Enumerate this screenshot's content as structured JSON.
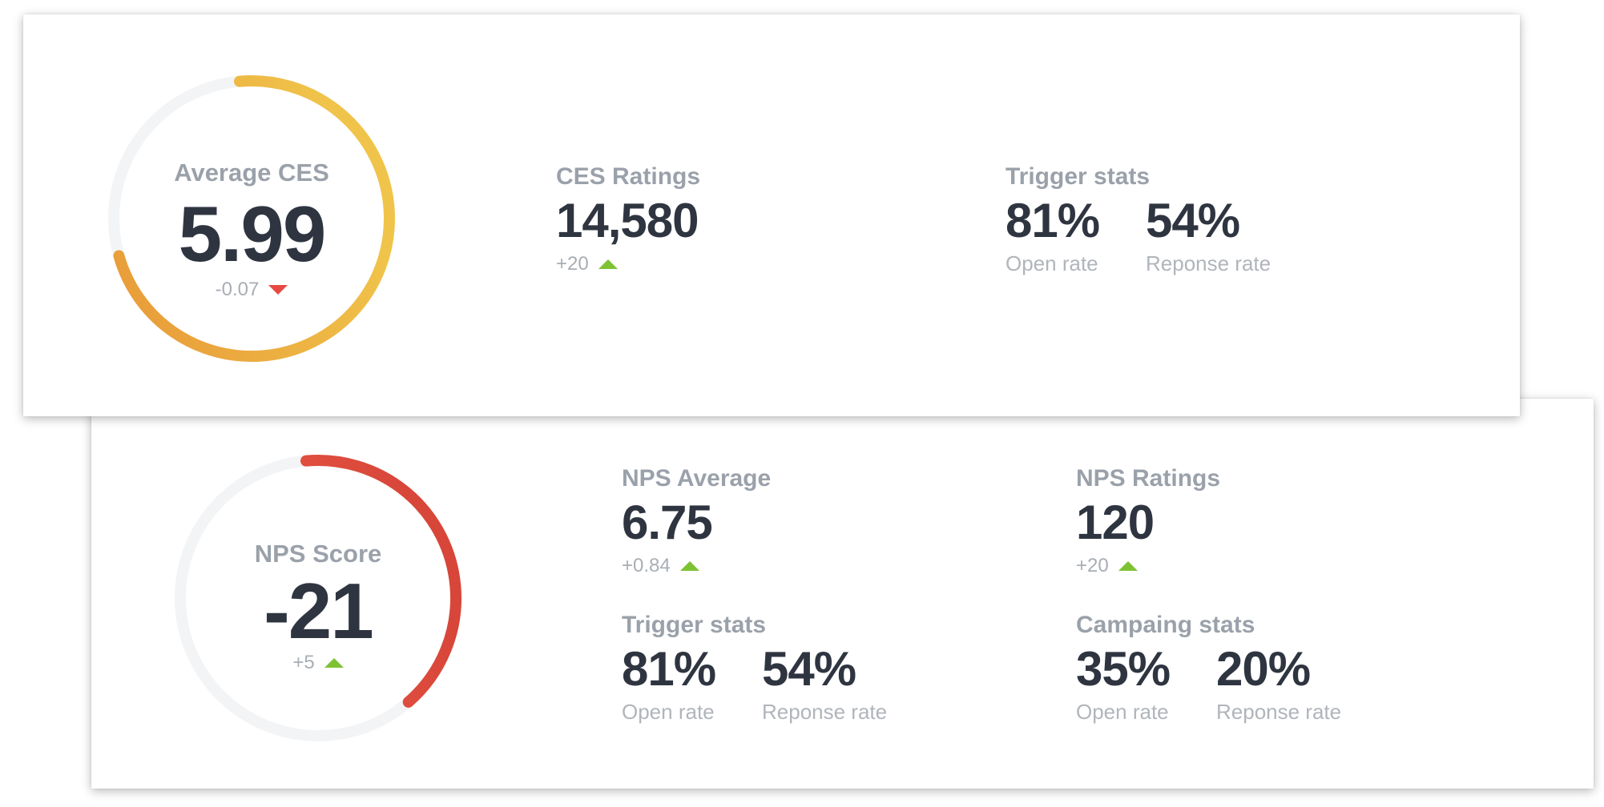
{
  "ces_card": {
    "gauge": {
      "label": "Average CES",
      "value": "5.99",
      "delta": "-0.07",
      "trend": "down",
      "fill_fraction": 0.72,
      "color_start": "#e89a38",
      "color_end": "#f0c44a"
    },
    "ratings": {
      "title": "CES Ratings",
      "value": "14,580",
      "delta": "+20",
      "trend": "up"
    },
    "trigger": {
      "title": "Trigger stats",
      "open_value": "81%",
      "open_label": "Open rate",
      "response_value": "54%",
      "response_label": "Reponse rate"
    }
  },
  "nps_card": {
    "gauge": {
      "label": "NPS Score",
      "value": "-21",
      "delta": "+5",
      "trend": "up",
      "fill_fraction": 0.4,
      "color_start": "#ef6048",
      "color_end": "#d8463a"
    },
    "average": {
      "title": "NPS Average",
      "value": "6.75",
      "delta": "+0.84",
      "trend": "up"
    },
    "ratings": {
      "title": "NPS Ratings",
      "value": "120",
      "delta": "+20",
      "trend": "up"
    },
    "trigger": {
      "title": "Trigger stats",
      "open_value": "81%",
      "open_label": "Open rate",
      "response_value": "54%",
      "response_label": "Reponse rate"
    },
    "campaign": {
      "title": "Campaing stats",
      "open_value": "35%",
      "open_label": "Open rate",
      "response_value": "20%",
      "response_label": "Reponse rate"
    }
  },
  "colors": {
    "track": "#f3f4f6",
    "up": "#7ec234",
    "down": "#e54a43",
    "value_text": "#2f3540",
    "label_text": "#9aa1aa"
  }
}
